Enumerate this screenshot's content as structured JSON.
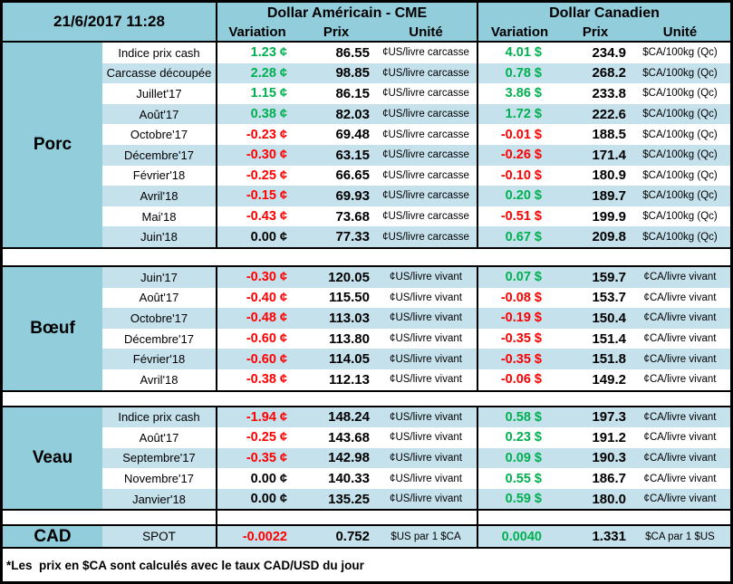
{
  "palette": {
    "header_blue": "#92CDDC",
    "stripe_blue": "#C4E1EC",
    "positive_green": "#00B050",
    "negative_red": "#FF0000",
    "text_black": "#000000"
  },
  "header": {
    "datetime": "21/6/2017 11:28",
    "us_group": "Dollar Américain - CME",
    "ca_group": "Dollar Canadien",
    "columns": [
      "Variation",
      "Prix",
      "Unité"
    ]
  },
  "sections": [
    {
      "name": "Porc",
      "stripe_first": false,
      "rows": [
        {
          "label": "Indice prix cash",
          "var_us": "1.23 ¢",
          "prix_us": "86.55",
          "unit_us": "¢US/livre carcasse",
          "var_ca": "4.01 $",
          "prix_ca": "234.9",
          "unit_ca": "$CA/100kg (Qc)"
        },
        {
          "label": "Carcasse découpée",
          "var_us": "2.28 ¢",
          "prix_us": "98.85",
          "unit_us": "¢US/livre carcasse",
          "var_ca": "0.78 $",
          "prix_ca": "268.2",
          "unit_ca": "$CA/100kg (Qc)"
        },
        {
          "label": "Juillet'17",
          "var_us": "1.15 ¢",
          "prix_us": "86.15",
          "unit_us": "¢US/livre carcasse",
          "var_ca": "3.86 $",
          "prix_ca": "233.8",
          "unit_ca": "$CA/100kg (Qc)"
        },
        {
          "label": "Août'17",
          "var_us": "0.38 ¢",
          "prix_us": "82.03",
          "unit_us": "¢US/livre carcasse",
          "var_ca": "1.72 $",
          "prix_ca": "222.6",
          "unit_ca": "$CA/100kg (Qc)"
        },
        {
          "label": "Octobre'17",
          "var_us": "-0.23 ¢",
          "prix_us": "69.48",
          "unit_us": "¢US/livre carcasse",
          "var_ca": "-0.01 $",
          "prix_ca": "188.5",
          "unit_ca": "$CA/100kg (Qc)"
        },
        {
          "label": "Décembre'17",
          "var_us": "-0.30 ¢",
          "prix_us": "63.15",
          "unit_us": "¢US/livre carcasse",
          "var_ca": "-0.26 $",
          "prix_ca": "171.4",
          "unit_ca": "$CA/100kg (Qc)"
        },
        {
          "label": "Février'18",
          "var_us": "-0.25 ¢",
          "prix_us": "66.65",
          "unit_us": "¢US/livre carcasse",
          "var_ca": "-0.10 $",
          "prix_ca": "180.9",
          "unit_ca": "$CA/100kg (Qc)"
        },
        {
          "label": "Avril'18",
          "var_us": "-0.15 ¢",
          "prix_us": "69.93",
          "unit_us": "¢US/livre carcasse",
          "var_ca": "0.20 $",
          "prix_ca": "189.7",
          "unit_ca": "$CA/100kg (Qc)"
        },
        {
          "label": "Mai'18",
          "var_us": "-0.43 ¢",
          "prix_us": "73.68",
          "unit_us": "¢US/livre carcasse",
          "var_ca": "-0.51 $",
          "prix_ca": "199.9",
          "unit_ca": "$CA/100kg (Qc)"
        },
        {
          "label": "Juin'18",
          "var_us": "0.00 ¢",
          "prix_us": "77.33",
          "unit_us": "¢US/livre carcasse",
          "var_ca": "0.67 $",
          "prix_ca": "209.8",
          "unit_ca": "$CA/100kg (Qc)"
        }
      ]
    },
    {
      "name": "Bœuf",
      "stripe_first": true,
      "rows": [
        {
          "label": "Juin'17",
          "var_us": "-0.30 ¢",
          "prix_us": "120.05",
          "unit_us": "¢US/livre vivant",
          "var_ca": "0.07 $",
          "prix_ca": "159.7",
          "unit_ca": "¢CA/livre vivant"
        },
        {
          "label": "Août'17",
          "var_us": "-0.40 ¢",
          "prix_us": "115.50",
          "unit_us": "¢US/livre vivant",
          "var_ca": "-0.08 $",
          "prix_ca": "153.7",
          "unit_ca": "¢CA/livre vivant"
        },
        {
          "label": "Octobre'17",
          "var_us": "-0.48 ¢",
          "prix_us": "113.03",
          "unit_us": "¢US/livre vivant",
          "var_ca": "-0.19 $",
          "prix_ca": "150.4",
          "unit_ca": "¢CA/livre vivant"
        },
        {
          "label": "Décembre'17",
          "var_us": "-0.60 ¢",
          "prix_us": "113.80",
          "unit_us": "¢US/livre vivant",
          "var_ca": "-0.35 $",
          "prix_ca": "151.4",
          "unit_ca": "¢CA/livre vivant"
        },
        {
          "label": "Février'18",
          "var_us": "-0.60 ¢",
          "prix_us": "114.05",
          "unit_us": "¢US/livre vivant",
          "var_ca": "-0.35 $",
          "prix_ca": "151.8",
          "unit_ca": "¢CA/livre vivant"
        },
        {
          "label": "Avril'18",
          "var_us": "-0.38 ¢",
          "prix_us": "112.13",
          "unit_us": "¢US/livre vivant",
          "var_ca": "-0.06 $",
          "prix_ca": "149.2",
          "unit_ca": "¢CA/livre vivant"
        }
      ]
    },
    {
      "name": "Veau",
      "stripe_first": true,
      "rows": [
        {
          "label": "Indice prix cash",
          "var_us": "-1.94 ¢",
          "prix_us": "148.24",
          "unit_us": "¢US/livre vivant",
          "var_ca": "0.58 $",
          "prix_ca": "197.3",
          "unit_ca": "¢CA/livre vivant"
        },
        {
          "label": "Août'17",
          "var_us": "-0.25 ¢",
          "prix_us": "143.68",
          "unit_us": "¢US/livre vivant",
          "var_ca": "0.23 $",
          "prix_ca": "191.2",
          "unit_ca": "¢CA/livre vivant"
        },
        {
          "label": "Septembre'17",
          "var_us": "-0.35 ¢",
          "prix_us": "142.98",
          "unit_us": "¢US/livre vivant",
          "var_ca": "0.09 $",
          "prix_ca": "190.3",
          "unit_ca": "¢CA/livre vivant"
        },
        {
          "label": "Novembre'17",
          "var_us": "0.00 ¢",
          "prix_us": "140.33",
          "unit_us": "¢US/livre vivant",
          "var_ca": "0.55 $",
          "prix_ca": "186.7",
          "unit_ca": "¢CA/livre vivant"
        },
        {
          "label": "Janvier'18",
          "var_us": "0.00 ¢",
          "prix_us": "135.25",
          "unit_us": "¢US/livre vivant",
          "var_ca": "0.59 $",
          "prix_ca": "180.0",
          "unit_ca": "¢CA/livre vivant"
        }
      ]
    }
  ],
  "cad": {
    "name": "CAD",
    "label": "SPOT",
    "var_us": "-0.0022",
    "prix_us": "0.752",
    "unit_us": "$US par 1 $CA",
    "var_ca": "0.0040",
    "prix_ca": "1.331",
    "unit_ca": "$CA par 1 $US"
  },
  "footer_note": "*Les  prix en $CA sont calculés avec le taux CAD/USD du jour"
}
